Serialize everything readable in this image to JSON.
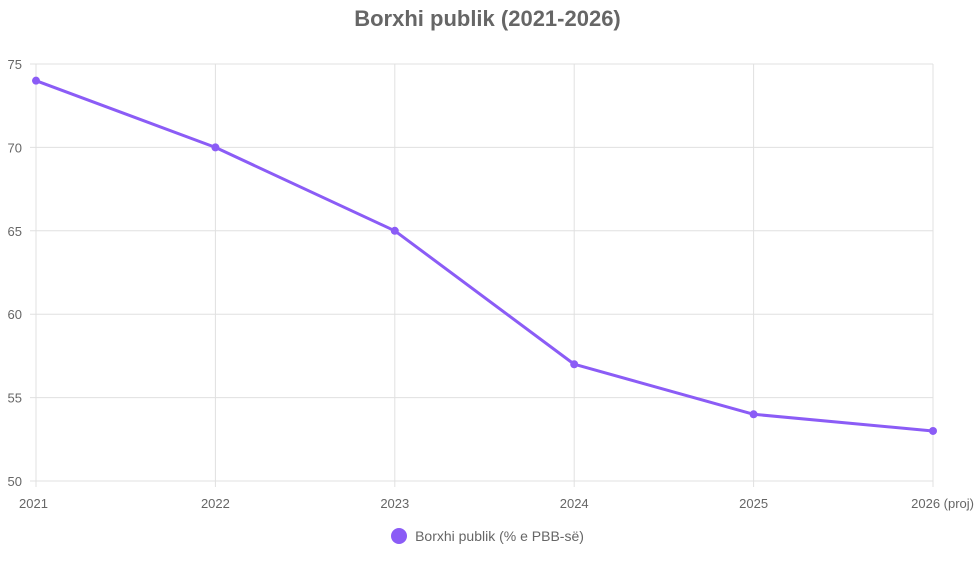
{
  "chart_data": {
    "type": "line",
    "title": "Borxhi publik (2021-2026)",
    "xlabel": "",
    "ylabel": "",
    "categories": [
      "2021",
      "2022",
      "2023",
      "2024",
      "2025",
      "2026 (proj)"
    ],
    "series": [
      {
        "name": "Borxhi publik (% e PBB-së)",
        "values": [
          74,
          70,
          65,
          57,
          54,
          53
        ],
        "color": "#8b5cf6"
      }
    ],
    "ylim": [
      50,
      75
    ],
    "yticks": [
      "50",
      "55",
      "60",
      "65",
      "70",
      "75"
    ],
    "grid": true,
    "legend_position": "bottom"
  }
}
